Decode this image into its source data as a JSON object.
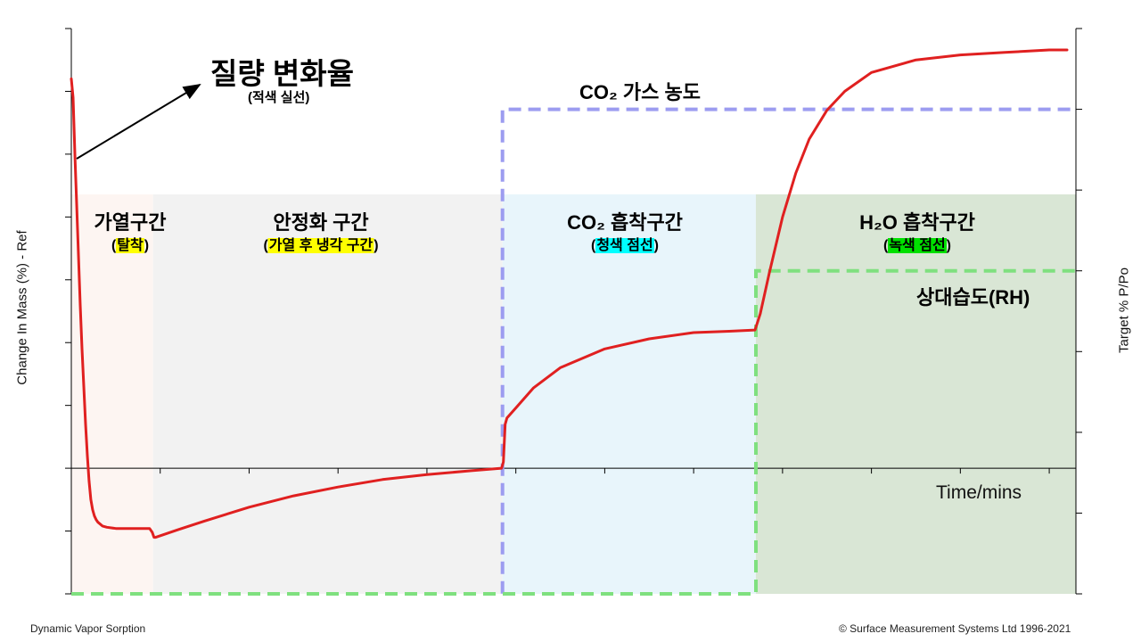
{
  "chart_data": {
    "type": "line",
    "title": "질량 변화율",
    "title_note": "(적색 실선)",
    "ylabel_left": "Change In Mass (%) - Ref",
    "ylabel_right": "Target % P/Po",
    "xlabel": "Time/mins",
    "xlim": [
      0,
      1130
    ],
    "ylim_left": [
      -10,
      35
    ],
    "ylim_right": [
      -10,
      60
    ],
    "grid": false,
    "zones": [
      {
        "name": "heating",
        "title": "가열구간",
        "sub_open": "(",
        "sub_highlight": "탈착",
        "sub_close": ")",
        "highlight_color": "#ffff00",
        "x0": 0,
        "x1": 92,
        "color": "#fdf5f2"
      },
      {
        "name": "stabilize",
        "title": "안정화 구간",
        "sub_open": "(",
        "sub_highlight": "가열 후 냉각 구간",
        "sub_close": ")",
        "highlight_color": "#ffff00",
        "x0": 92,
        "x1": 485,
        "color": "#f2f2f2"
      },
      {
        "name": "co2",
        "title": "CO₂ 흡착구간",
        "sub_open": "(",
        "sub_highlight": "청색 점선",
        "sub_close": ")",
        "highlight_color": "#00ffff",
        "x0": 485,
        "x1": 770,
        "color": "#e8f5fb"
      },
      {
        "name": "h2o",
        "title": "H₂O 흡착구간",
        "sub_open": "(",
        "sub_highlight": "녹색 점선",
        "sub_close": ")",
        "highlight_color": "#00e000",
        "x0": 770,
        "x1": 1130,
        "color": "#d9e6d5"
      }
    ],
    "series": [
      {
        "name": "Change In Mass",
        "color": "#e02020",
        "axis": "left",
        "x": [
          0,
          2,
          4,
          6,
          8,
          10,
          12,
          14,
          16,
          18,
          20,
          22,
          24,
          26,
          28,
          30,
          35,
          40,
          50,
          60,
          70,
          80,
          88,
          91,
          93,
          95,
          120,
          150,
          200,
          250,
          300,
          350,
          400,
          450,
          484,
          486,
          488,
          490,
          500,
          520,
          550,
          600,
          650,
          700,
          740,
          769,
          775,
          785,
          800,
          815,
          830,
          850,
          870,
          900,
          950,
          1000,
          1050,
          1100,
          1120
        ],
        "y": [
          31,
          29.5,
          25,
          21,
          17,
          13,
          9.5,
          6.5,
          3.5,
          1,
          -1,
          -2.5,
          -3.3,
          -3.8,
          -4.1,
          -4.3,
          -4.6,
          -4.7,
          -4.8,
          -4.8,
          -4.8,
          -4.8,
          -4.8,
          -5.1,
          -5.5,
          -5.5,
          -4.9,
          -4.2,
          -3.1,
          -2.2,
          -1.5,
          -0.9,
          -0.5,
          -0.2,
          0,
          0.5,
          3.5,
          4,
          4.8,
          6.4,
          8.0,
          9.5,
          10.3,
          10.8,
          10.9,
          11.0,
          12.3,
          15.5,
          20,
          23.5,
          26.2,
          28.5,
          30,
          31.5,
          32.5,
          32.9,
          33.1,
          33.3,
          33.3
        ]
      },
      {
        "name": "CO₂ 가스 농도",
        "color": "#9c9cf0",
        "axis": "right",
        "style": "dashed",
        "x": [
          0,
          485,
          485,
          1130
        ],
        "y": [
          -10,
          -10,
          50,
          50
        ]
      },
      {
        "name": "상대습도(RH)",
        "color": "#7fe07f",
        "axis": "right",
        "style": "dashed",
        "x": [
          0,
          770,
          770,
          1130
        ],
        "y": [
          -10,
          -10,
          30,
          30
        ]
      }
    ],
    "annotations": [
      {
        "name": "co2-gas",
        "text": "CO₂ 가스 농도"
      },
      {
        "name": "rh",
        "text": "상대습도(RH)"
      }
    ]
  },
  "footer": {
    "left": "Dynamic Vapor Sorption",
    "right": "© Surface Measurement Systems Ltd 1996-2021"
  }
}
